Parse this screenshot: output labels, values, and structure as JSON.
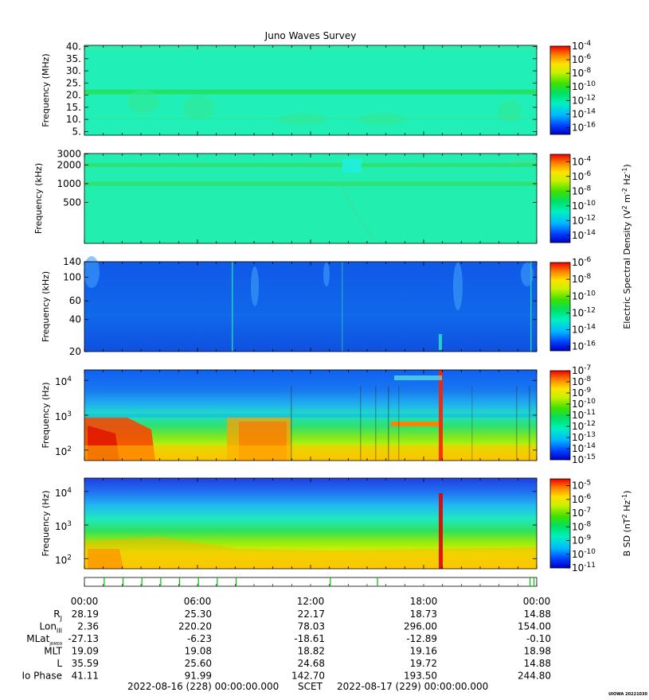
{
  "title": "Juno Waves Survey",
  "panels": [
    {
      "id": "hfr-high",
      "ylabel": "Frequency (MHz)",
      "scale": "linear",
      "ylim": [
        3.5,
        40.5
      ],
      "yticks": [
        {
          "v": 40,
          "label": "40."
        },
        {
          "v": 35,
          "label": "35."
        },
        {
          "v": 30,
          "label": "30."
        },
        {
          "v": 25,
          "label": "25."
        },
        {
          "v": 20,
          "label": "20."
        },
        {
          "v": 15,
          "label": "15."
        },
        {
          "v": 10,
          "label": "10."
        },
        {
          "v": 5,
          "label": "5."
        }
      ],
      "colorbar": {
        "min_exp": -17,
        "max_exp": -4,
        "labels": [
          {
            "v": -4,
            "text": "10",
            "sup": "-4"
          },
          {
            "v": -6,
            "text": "10",
            "sup": "-6"
          },
          {
            "v": -8,
            "text": "10",
            "sup": "-8"
          },
          {
            "v": -10,
            "text": "10",
            "sup": "-10"
          },
          {
            "v": -12,
            "text": "10",
            "sup": "-12"
          },
          {
            "v": -14,
            "text": "10",
            "sup": "-14"
          },
          {
            "v": -16,
            "text": "10",
            "sup": "-16"
          }
        ]
      },
      "background": "#20f0b8",
      "features": [
        {
          "type": "band",
          "from": 20.3,
          "to": 22.3,
          "color": "#22e060"
        },
        {
          "type": "band",
          "from": 10.2,
          "to": 10.8,
          "color": "#30e8a0"
        }
      ]
    },
    {
      "id": "hfr-low",
      "ylabel": "Frequency (kHz)",
      "scale": "log",
      "ylim": [
        110,
        3050
      ],
      "yticks": [
        {
          "v": 3000,
          "label": "3000"
        },
        {
          "v": 2000,
          "label": "2000"
        },
        {
          "v": 1000,
          "label": "1000"
        },
        {
          "v": 500,
          "label": "500"
        }
      ],
      "colorbar": {
        "min_exp": -15,
        "max_exp": -3,
        "labels": [
          {
            "v": -4,
            "text": "10",
            "sup": "-4"
          },
          {
            "v": -6,
            "text": "10",
            "sup": "-6"
          },
          {
            "v": -8,
            "text": "10",
            "sup": "-8"
          },
          {
            "v": -10,
            "text": "10",
            "sup": "-10"
          },
          {
            "v": -12,
            "text": "10",
            "sup": "-12"
          },
          {
            "v": -14,
            "text": "10",
            "sup": "-14"
          }
        ]
      },
      "background": "#22eeb0",
      "features": [
        {
          "type": "band",
          "from": 1850,
          "to": 2150,
          "color": "#30e070"
        },
        {
          "type": "band",
          "from": 920,
          "to": 1080,
          "color": "#30e070"
        }
      ]
    },
    {
      "id": "lfr-high",
      "ylabel": "Frequency (kHz)",
      "scale": "log",
      "ylim": [
        20,
        140
      ],
      "yticks": [
        {
          "v": 140,
          "label": "140"
        },
        {
          "v": 100,
          "label": "100"
        },
        {
          "v": 60,
          "label": "60"
        },
        {
          "v": 40,
          "label": "40"
        },
        {
          "v": 20,
          "label": "20"
        }
      ],
      "colorbar": {
        "min_exp": -16.5,
        "max_exp": -6,
        "labels": [
          {
            "v": -6,
            "text": "10",
            "sup": "-6"
          },
          {
            "v": -8,
            "text": "10",
            "sup": "-8"
          },
          {
            "v": -10,
            "text": "10",
            "sup": "-10"
          },
          {
            "v": -12,
            "text": "10",
            "sup": "-12"
          },
          {
            "v": -14,
            "text": "10",
            "sup": "-14"
          },
          {
            "v": -16,
            "text": "10",
            "sup": "-16"
          }
        ]
      },
      "background": "#1060e8",
      "features": []
    },
    {
      "id": "lfr-low",
      "ylabel": "Frequency (Hz)",
      "scale": "log",
      "ylim": [
        50,
        20000
      ],
      "yticks": [
        {
          "v": 10000,
          "label": "10",
          "sup": "4"
        },
        {
          "v": 1000,
          "label": "10",
          "sup": "3"
        },
        {
          "v": 100,
          "label": "10",
          "sup": "2"
        }
      ],
      "colorbar": {
        "min_exp": -15,
        "max_exp": -7,
        "labels": [
          {
            "v": -7,
            "text": "10",
            "sup": "-7"
          },
          {
            "v": -8,
            "text": "10",
            "sup": "-8"
          },
          {
            "v": -9,
            "text": "10",
            "sup": "-9"
          },
          {
            "v": -10,
            "text": "10",
            "sup": "-10"
          },
          {
            "v": -11,
            "text": "10",
            "sup": "-11"
          },
          {
            "v": -12,
            "text": "10",
            "sup": "-12"
          },
          {
            "v": -13,
            "text": "10",
            "sup": "-13"
          },
          {
            "v": -14,
            "text": "10",
            "sup": "-14"
          },
          {
            "v": -15,
            "text": "10",
            "sup": "-15"
          }
        ]
      },
      "background": "#30d0f0",
      "features": []
    },
    {
      "id": "mag",
      "ylabel": "Frequency (Hz)",
      "scale": "log",
      "ylim": [
        50,
        25000
      ],
      "yticks": [
        {
          "v": 10000,
          "label": "10",
          "sup": "4"
        },
        {
          "v": 1000,
          "label": "10",
          "sup": "3"
        },
        {
          "v": 100,
          "label": "10",
          "sup": "2"
        }
      ],
      "colorbar": {
        "min_exp": -11,
        "max_exp": -4.5,
        "labels": [
          {
            "v": -5,
            "text": "10",
            "sup": "-5"
          },
          {
            "v": -6,
            "text": "10",
            "sup": "-6"
          },
          {
            "v": -7,
            "text": "10",
            "sup": "-7"
          },
          {
            "v": -8,
            "text": "10",
            "sup": "-8"
          },
          {
            "v": -9,
            "text": "10",
            "sup": "-9"
          },
          {
            "v": -10,
            "text": "10",
            "sup": "-10"
          },
          {
            "v": -11,
            "text": "10",
            "sup": "-11"
          }
        ]
      },
      "background": "#40d0e0",
      "features": []
    }
  ],
  "side_labels": {
    "electric": "Electric Spectral Density (V² m⁻² Hz⁻¹)",
    "electric_parts": {
      "a": "Electric Spectral Density (V",
      "b": "2",
      "c": " m",
      "d": "-2",
      "e": " Hz",
      "f": "-1",
      "g": ")"
    },
    "magnetic_parts": {
      "a": "B SD (nT",
      "b": "2",
      "c": " Hz",
      "d": "-1",
      "e": ")"
    }
  },
  "chart_data": {
    "type": "heatmap",
    "title": "Juno Waves Survey",
    "x_axis": {
      "start": "2022-08-16 00:00",
      "end": "2022-08-17 00:00",
      "ticks": [
        "00:00",
        "06:00",
        "12:00",
        "18:00",
        "00:00"
      ]
    },
    "event_markers_hours": [
      1.05,
      2.05,
      3.05,
      4.05,
      5.05,
      6.05,
      7.05,
      8.05,
      13.05,
      15.55,
      23.65,
      23.85
    ],
    "ephemeris": {
      "columns": [
        "00:00",
        "06:00",
        "12:00",
        "18:00",
        "00:00"
      ],
      "rows": [
        {
          "label": "R",
          "sub": "J",
          "values": [
            "28.19",
            "25.30",
            "22.17",
            "18.73",
            "14.88"
          ]
        },
        {
          "label": "Lon",
          "sub": "III",
          "values": [
            "2.36",
            "220.20",
            "78.03",
            "296.00",
            "154.00"
          ]
        },
        {
          "label": "MLat",
          "sub": "JRM09",
          "values": [
            "-27.13",
            "-6.23",
            "-18.61",
            "-12.89",
            "-0.10"
          ]
        },
        {
          "label": "MLT",
          "sub": "",
          "values": [
            "19.09",
            "19.08",
            "18.82",
            "19.16",
            "18.98"
          ]
        },
        {
          "label": "L",
          "sub": "",
          "values": [
            "35.59",
            "25.60",
            "24.68",
            "19.72",
            "14.88"
          ]
        },
        {
          "label": "Io Phase",
          "sub": "",
          "values": [
            "41.11",
            "91.99",
            "142.70",
            "193.50",
            "244.80"
          ]
        }
      ]
    },
    "time_range": {
      "start": "2022-08-16 (228) 00:00:00.000",
      "center": "SCET",
      "end": "2022-08-17 (229) 00:00:00.000"
    },
    "credit": "UIOWA 20221030"
  },
  "colors": {
    "colormap": [
      "#0000c0",
      "#0050ff",
      "#00c8ff",
      "#00f0a0",
      "#20e020",
      "#a0f000",
      "#ffff00",
      "#ffa000",
      "#ff2000",
      "#e00000"
    ],
    "marker": "#00c000"
  }
}
